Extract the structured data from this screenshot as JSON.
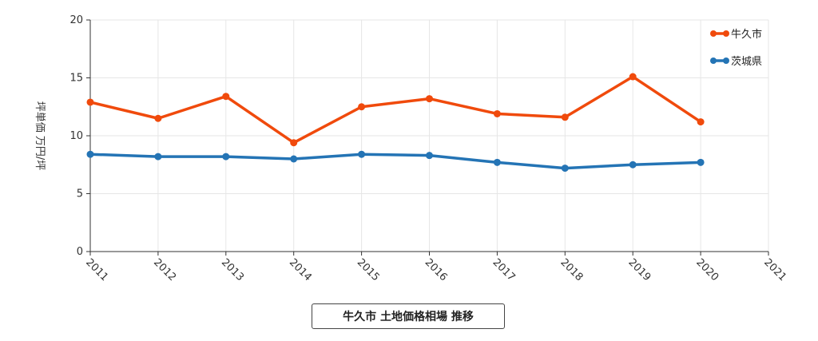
{
  "chart_data": {
    "type": "line",
    "title": "牛久市 土地価格相場 推移",
    "ylabel": "坪単価 万円/坪",
    "xlabel": "",
    "x": [
      2011,
      2012,
      2013,
      2014,
      2015,
      2016,
      2017,
      2018,
      2019,
      2020
    ],
    "x_ticks": [
      "2011",
      "2012",
      "2013",
      "2014",
      "2015",
      "2016",
      "2017",
      "2018",
      "2019",
      "2020",
      "2021"
    ],
    "xlim": [
      2011,
      2021
    ],
    "y_ticks": [
      "0",
      "5",
      "10",
      "15",
      "20"
    ],
    "ylim": [
      0,
      20
    ],
    "grid": true,
    "legend_position": "top-right",
    "series": [
      {
        "name": "牛久市",
        "color": "#f04a0c",
        "values": [
          12.9,
          11.5,
          13.4,
          9.4,
          12.5,
          13.2,
          11.9,
          11.6,
          15.1,
          11.2
        ]
      },
      {
        "name": "茨城県",
        "color": "#2474b5",
        "values": [
          8.4,
          8.2,
          8.2,
          8.0,
          8.4,
          8.3,
          7.7,
          7.2,
          7.5,
          7.7
        ]
      }
    ]
  }
}
